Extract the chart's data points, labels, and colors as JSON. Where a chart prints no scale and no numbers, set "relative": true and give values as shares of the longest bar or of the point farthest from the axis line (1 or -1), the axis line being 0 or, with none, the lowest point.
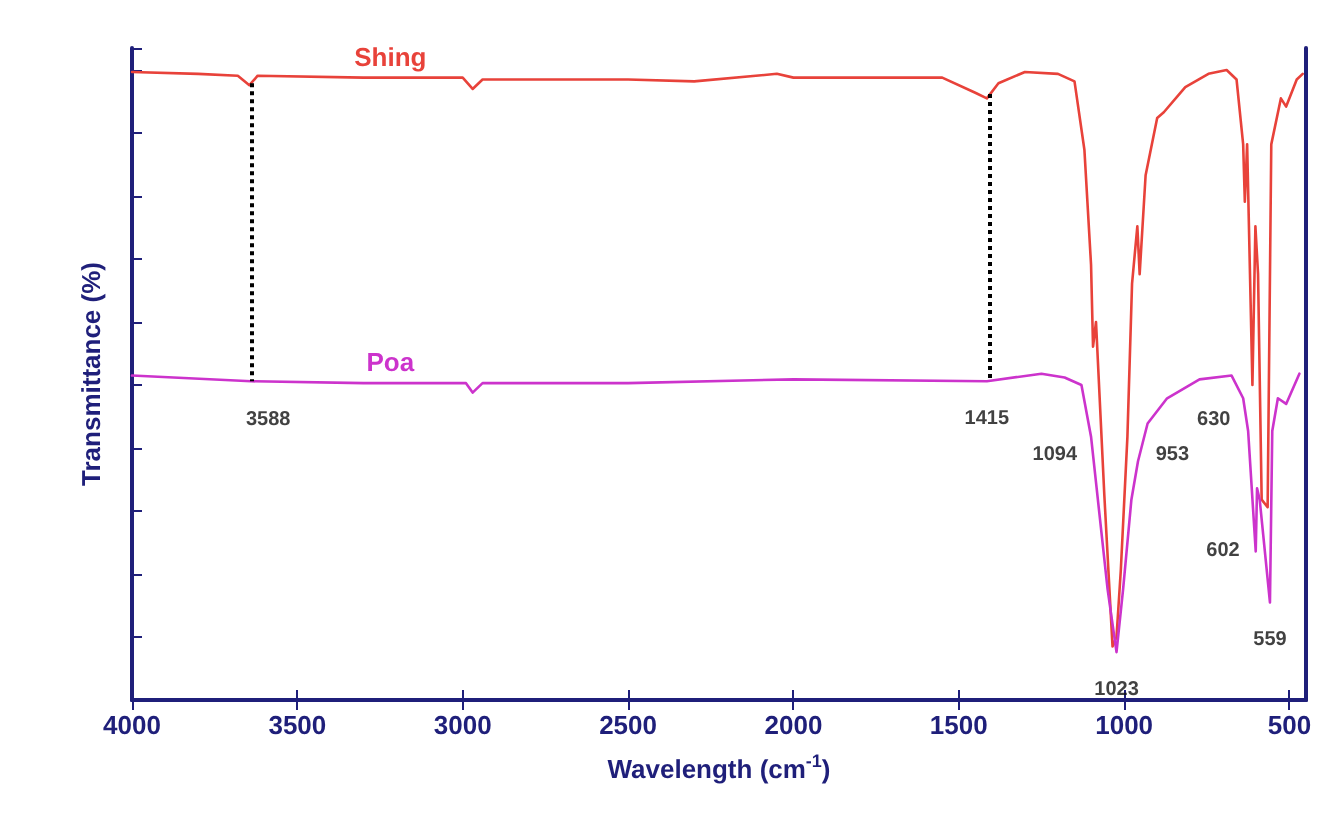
{
  "chart_data": {
    "type": "line",
    "relative": true,
    "xlabel": "Wavelength (cm$^{-1}$)",
    "ylabel": "Transmittance (%)",
    "xlim": [
      4000,
      450
    ],
    "xticks": [
      4000,
      3500,
      3000,
      2500,
      2000,
      1500,
      1000,
      500
    ],
    "grid": false,
    "legend": false,
    "marker": "none",
    "line_style": "solid",
    "series": [
      {
        "name": "Shing",
        "color": "#e8423a",
        "x": [
          4000,
          3800,
          3680,
          3645,
          3620,
          3300,
          3000,
          2970,
          2940,
          2500,
          2300,
          2050,
          2000,
          1800,
          1550,
          1450,
          1415,
          1380,
          1300,
          1200,
          1150,
          1120,
          1100,
          1094,
          1085,
          1060,
          1035,
          1023,
          1010,
          990,
          976,
          960,
          953,
          935,
          900,
          880,
          815,
          745,
          690,
          660,
          640,
          635,
          628,
          612,
          603,
          595,
          584,
          566,
          555,
          526,
          510,
          478,
          460
        ],
        "values": [
          0.997,
          0.994,
          0.991,
          0.976,
          0.991,
          0.988,
          0.988,
          0.97,
          0.985,
          0.985,
          0.982,
          0.994,
          0.988,
          0.988,
          0.988,
          0.964,
          0.955,
          0.979,
          0.997,
          0.994,
          0.982,
          0.873,
          0.691,
          0.561,
          0.6,
          0.327,
          0.085,
          0.1,
          0.206,
          0.418,
          0.661,
          0.752,
          0.676,
          0.833,
          0.924,
          0.933,
          0.973,
          0.994,
          1.0,
          0.985,
          0.882,
          0.791,
          0.882,
          0.5,
          0.752,
          0.676,
          0.318,
          0.306,
          0.882,
          0.955,
          0.942,
          0.985,
          0.994
        ]
      },
      {
        "name": "Poa",
        "color": "#cc33cc",
        "x": [
          4000,
          3640,
          3300,
          2990,
          2970,
          2940,
          2500,
          2000,
          1415,
          1250,
          1180,
          1129,
          1100,
          1083,
          1075,
          1050,
          1023,
          1003,
          978,
          958,
          929,
          870,
          772,
          675,
          640,
          625,
          602,
          598,
          590,
          559,
          552,
          535,
          510,
          470
        ],
        "values": [
          0.515,
          0.506,
          0.503,
          0.503,
          0.488,
          0.503,
          0.503,
          0.509,
          0.506,
          0.518,
          0.512,
          0.5,
          0.418,
          0.336,
          0.297,
          0.176,
          0.076,
          0.176,
          0.318,
          0.379,
          0.439,
          0.479,
          0.509,
          0.515,
          0.479,
          0.427,
          0.236,
          0.336,
          0.318,
          0.155,
          0.427,
          0.479,
          0.47,
          0.518
        ]
      }
    ],
    "ref_lines": [
      {
        "axis": "x",
        "value": 3640,
        "color": "#000000",
        "line_style": "dotted"
      },
      {
        "axis": "x",
        "value": 1405,
        "color": "#000000",
        "line_style": "dotted"
      }
    ],
    "annotations": [
      {
        "text": "3588",
        "x": 3588,
        "y": 0.505
      },
      {
        "text": "1415",
        "x": 1415,
        "y": 0.506
      },
      {
        "text": "1094",
        "x": 1094,
        "y": 0.389
      },
      {
        "text": "953",
        "x": 953,
        "y": 0.389
      },
      {
        "text": "1023",
        "x": 1023,
        "y": 0.076
      },
      {
        "text": "630",
        "x": 630,
        "y": 0.444
      },
      {
        "text": "602",
        "x": 602,
        "y": 0.236
      },
      {
        "text": "559",
        "x": 559,
        "y": 0.155
      }
    ]
  }
}
